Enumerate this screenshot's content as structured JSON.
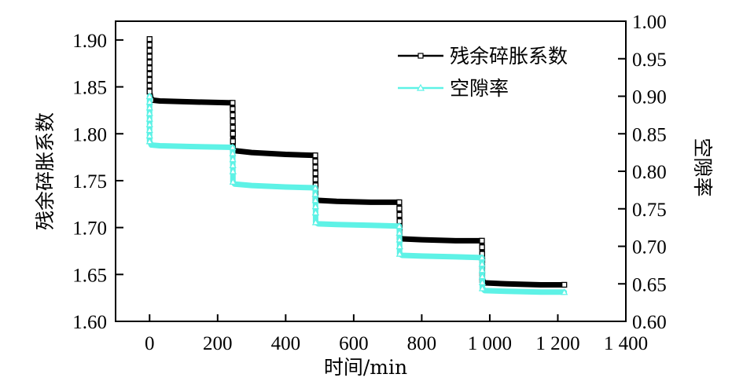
{
  "chart_data": {
    "type": "line",
    "title": "",
    "xlabel": "时间/min",
    "ylabel": "残余碎胀系数",
    "y2label": "空隙率",
    "xlim": [
      -100,
      1400
    ],
    "ylim": [
      1.6,
      1.92
    ],
    "y2lim": [
      0.6,
      1.0
    ],
    "xticks": [
      0,
      200,
      400,
      600,
      800,
      1000,
      1200,
      1400
    ],
    "xtick_labels": [
      "0",
      "200",
      "400",
      "600",
      "800",
      "1 000",
      "1 200",
      "1 400"
    ],
    "yticks": [
      1.6,
      1.65,
      1.7,
      1.75,
      1.8,
      1.85,
      1.9
    ],
    "ytick_labels": [
      "1.60",
      "1.65",
      "1.70",
      "1.75",
      "1.80",
      "1.85",
      "1.90"
    ],
    "y2ticks": [
      0.6,
      0.65,
      0.7,
      0.75,
      0.8,
      0.85,
      0.9,
      0.95,
      1.0
    ],
    "y2tick_labels": [
      "0.60",
      "0.65",
      "0.70",
      "0.75",
      "0.80",
      "0.85",
      "0.90",
      "0.95",
      "1.00"
    ],
    "grid": false,
    "legend_position": "top-right",
    "series": [
      {
        "name": "残余碎胀系数",
        "axis": "left",
        "color": "#000000",
        "marker": "square",
        "x": [
          0,
          0,
          5,
          30,
          120,
          244,
          245,
          245,
          250,
          300,
          400,
          487,
          488,
          488,
          495,
          550,
          650,
          734,
          735,
          735,
          742,
          800,
          900,
          977,
          978,
          978,
          985,
          1050,
          1150,
          1219
        ],
        "y": [
          1.901,
          1.845,
          1.836,
          1.835,
          1.834,
          1.833,
          1.8,
          1.784,
          1.782,
          1.78,
          1.778,
          1.777,
          1.745,
          1.73,
          1.729,
          1.728,
          1.727,
          1.727,
          1.7,
          1.69,
          1.688,
          1.687,
          1.686,
          1.686,
          1.665,
          1.644,
          1.641,
          1.64,
          1.639,
          1.639
        ]
      },
      {
        "name": "空隙率",
        "axis": "right",
        "color": "#5ef2e6",
        "marker": "triangle",
        "x": [
          0,
          0,
          5,
          30,
          120,
          244,
          245,
          245,
          250,
          300,
          400,
          487,
          488,
          488,
          495,
          550,
          650,
          734,
          735,
          735,
          742,
          800,
          900,
          977,
          978,
          978,
          985,
          1050,
          1150,
          1219
        ],
        "y": [
          0.9,
          0.84,
          0.835,
          0.834,
          0.833,
          0.832,
          0.8,
          0.786,
          0.783,
          0.781,
          0.779,
          0.778,
          0.745,
          0.732,
          0.73,
          0.729,
          0.728,
          0.727,
          0.7,
          0.69,
          0.688,
          0.687,
          0.686,
          0.685,
          0.66,
          0.644,
          0.641,
          0.64,
          0.639,
          0.639
        ]
      }
    ]
  }
}
